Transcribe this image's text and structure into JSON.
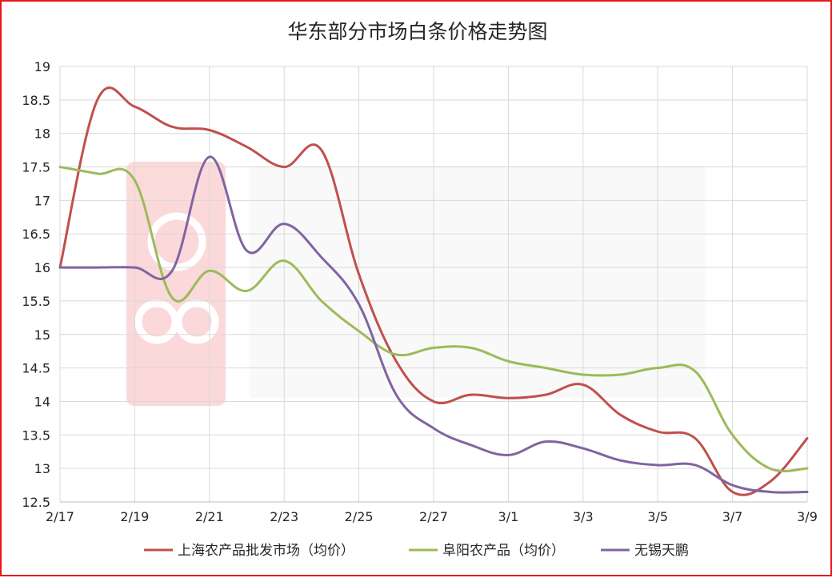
{
  "chart_data": {
    "type": "line",
    "title": "华东部分市场白条价格走势图",
    "xlabel": "",
    "ylabel": "",
    "ylim": [
      12.5,
      19
    ],
    "yticks": [
      "12.5",
      "13",
      "13.5",
      "14",
      "14.5",
      "15",
      "15.5",
      "16",
      "16.5",
      "17",
      "17.5",
      "18",
      "18.5",
      "19"
    ],
    "x": [
      "2/17",
      "2/18",
      "2/19",
      "2/20",
      "2/21",
      "2/22",
      "2/23",
      "2/24",
      "2/25",
      "2/26",
      "2/27",
      "2/28",
      "3/1",
      "3/2",
      "3/3",
      "3/4",
      "3/5",
      "3/6",
      "3/7",
      "3/8",
      "3/9"
    ],
    "xtick_labels": [
      "2/17",
      "2/19",
      "2/21",
      "2/23",
      "2/25",
      "2/27",
      "3/1",
      "3/3",
      "3/5",
      "3/7",
      "3/9"
    ],
    "grid": true,
    "legend_position": "bottom",
    "series": [
      {
        "name": "上海农产品批发市场（均价）",
        "color": "#c0504d",
        "values": [
          16.0,
          18.5,
          18.4,
          18.1,
          18.05,
          17.8,
          17.5,
          17.75,
          15.9,
          14.6,
          14.0,
          14.1,
          14.05,
          14.1,
          14.25,
          13.8,
          13.55,
          13.45,
          12.65,
          12.8,
          13.45
        ]
      },
      {
        "name": "阜阳农产品（均价）",
        "color": "#9bbb59",
        "values": [
          17.5,
          17.4,
          17.3,
          15.55,
          15.95,
          15.65,
          16.1,
          15.5,
          15.05,
          14.7,
          14.8,
          14.8,
          14.6,
          14.5,
          14.4,
          14.4,
          14.5,
          14.45,
          13.5,
          13.0,
          13.0
        ]
      },
      {
        "name": "无锡天鹏",
        "color": "#8064a2",
        "values": [
          16.0,
          16.0,
          16.0,
          15.95,
          17.65,
          16.25,
          16.65,
          16.15,
          15.45,
          14.1,
          13.6,
          13.35,
          13.2,
          13.4,
          13.3,
          13.12,
          13.05,
          13.05,
          12.75,
          12.65,
          12.65
        ]
      }
    ]
  }
}
